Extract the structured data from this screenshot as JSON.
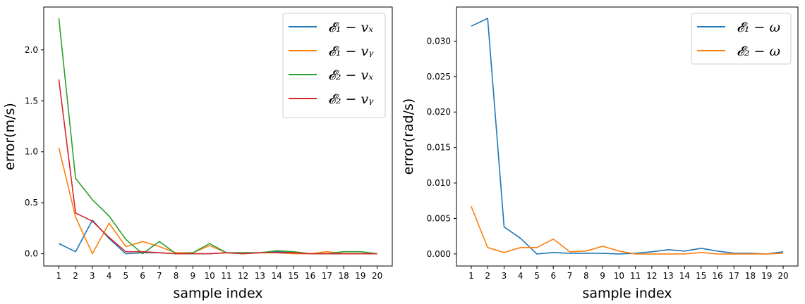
{
  "chart_data": [
    {
      "type": "line",
      "title": "",
      "xlabel": "sample index",
      "ylabel": "error(m/s)",
      "x": [
        1,
        2,
        3,
        4,
        5,
        6,
        7,
        8,
        9,
        10,
        11,
        12,
        13,
        14,
        15,
        16,
        17,
        18,
        19,
        20
      ],
      "x_ticks": [
        "1",
        "2",
        "3",
        "4",
        "5",
        "6",
        "7",
        "8",
        "9",
        "10",
        "11",
        "12",
        "13",
        "14",
        "15",
        "16",
        "17",
        "18",
        "19",
        "20"
      ],
      "xlim": [
        0.1,
        20.9
      ],
      "ylim": [
        -0.12,
        2.42
      ],
      "y_ticks": [
        0.0,
        0.5,
        1.0,
        1.5,
        2.0
      ],
      "y_tick_labels": [
        "0.0",
        "0.5",
        "1.0",
        "1.5",
        "2.0"
      ],
      "legend_position": "top-right",
      "series": [
        {
          "name": "𝓔₁ − vₓ",
          "color": "#1f77b4",
          "values": [
            0.1,
            0.02,
            0.33,
            0.15,
            0.0,
            0.01,
            0.01,
            0.0,
            0.0,
            0.0,
            0.01,
            0.01,
            0.01,
            0.02,
            0.01,
            0.0,
            0.0,
            0.0,
            0.0,
            0.0
          ]
        },
        {
          "name": "𝓔₁ − vᵧ",
          "color": "#ff7f0e",
          "values": [
            1.04,
            0.36,
            0.0,
            0.3,
            0.07,
            0.12,
            0.07,
            0.01,
            0.01,
            0.08,
            0.01,
            0.0,
            0.01,
            0.01,
            0.0,
            0.0,
            0.02,
            0.0,
            0.0,
            0.0
          ]
        },
        {
          "name": "𝓔₂ − vₓ",
          "color": "#2ca02c",
          "values": [
            2.31,
            0.74,
            0.53,
            0.37,
            0.14,
            0.0,
            0.12,
            0.0,
            0.01,
            0.1,
            0.01,
            0.01,
            0.01,
            0.03,
            0.02,
            0.0,
            0.0,
            0.02,
            0.02,
            0.0
          ]
        },
        {
          "name": "𝓔₂ − vᵧ",
          "color": "#d62728",
          "values": [
            1.71,
            0.4,
            0.32,
            0.16,
            0.02,
            0.02,
            0.01,
            0.0,
            0.0,
            0.0,
            0.01,
            0.0,
            0.01,
            0.01,
            0.01,
            0.0,
            0.0,
            0.0,
            0.0,
            0.0
          ]
        }
      ]
    },
    {
      "type": "line",
      "title": "",
      "xlabel": "sample index",
      "ylabel": "error(rad/s)",
      "x": [
        1,
        2,
        3,
        4,
        5,
        6,
        7,
        8,
        9,
        10,
        11,
        12,
        13,
        14,
        15,
        16,
        17,
        18,
        19,
        20
      ],
      "x_ticks": [
        "1",
        "2",
        "3",
        "4",
        "5",
        "6",
        "7",
        "8",
        "9",
        "10",
        "11",
        "12",
        "13",
        "14",
        "15",
        "16",
        "17",
        "18",
        "19",
        "20"
      ],
      "xlim": [
        0.1,
        20.9
      ],
      "ylim": [
        -0.0017,
        0.0348
      ],
      "y_ticks": [
        0.0,
        0.005,
        0.01,
        0.015,
        0.02,
        0.025,
        0.03
      ],
      "y_tick_labels": [
        "0.000",
        "0.005",
        "0.010",
        "0.015",
        "0.020",
        "0.025",
        "0.030"
      ],
      "legend_position": "top-right",
      "series": [
        {
          "name": "𝓔₁ − ω",
          "color": "#1f77b4",
          "values": [
            0.0321,
            0.0332,
            0.0038,
            0.0022,
            0.0,
            0.0002,
            0.0001,
            0.0001,
            0.0001,
            0.0,
            0.0001,
            0.0003,
            0.0006,
            0.0004,
            0.0008,
            0.0004,
            0.0001,
            0.0001,
            0.0,
            0.0003
          ]
        },
        {
          "name": "𝓔₂ − ω",
          "color": "#ff7f0e",
          "values": [
            0.0067,
            0.0009,
            0.0002,
            0.0009,
            0.0009,
            0.0021,
            0.0003,
            0.0004,
            0.0011,
            0.0004,
            0.0,
            0.0,
            0.0,
            0.0,
            0.0002,
            0.0,
            0.0,
            0.0,
            0.0,
            0.0001
          ]
        }
      ]
    }
  ]
}
